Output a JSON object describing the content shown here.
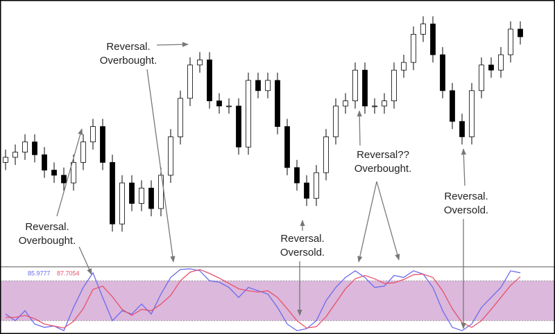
{
  "chart_data": [
    {
      "type": "candlestick",
      "open": [
        38,
        40,
        42,
        46,
        41,
        35,
        33,
        30,
        38,
        46,
        52,
        38,
        14,
        30,
        22,
        28,
        20,
        33,
        48,
        63,
        76,
        78,
        62,
        60,
        60,
        44,
        70,
        66,
        70,
        52,
        36,
        30,
        24,
        34,
        48,
        60,
        62,
        74,
        60,
        60,
        62,
        74,
        77,
        88,
        92,
        80,
        66,
        54,
        48,
        66,
        76,
        74,
        80,
        90
      ],
      "high": [
        43,
        45,
        49,
        49,
        44,
        38,
        36,
        41,
        49,
        55,
        55,
        41,
        33,
        33,
        31,
        31,
        36,
        51,
        66,
        79,
        81,
        81,
        65,
        63,
        63,
        73,
        73,
        73,
        73,
        55,
        39,
        33,
        37,
        51,
        63,
        65,
        77,
        77,
        63,
        65,
        77,
        80,
        91,
        95,
        95,
        83,
        69,
        57,
        69,
        79,
        79,
        83,
        93,
        93
      ],
      "low": [
        35,
        37,
        39,
        38,
        32,
        30,
        27,
        27,
        35,
        43,
        35,
        11,
        11,
        19,
        19,
        17,
        17,
        30,
        45,
        60,
        73,
        59,
        57,
        57,
        41,
        41,
        63,
        63,
        49,
        33,
        27,
        21,
        21,
        31,
        45,
        57,
        59,
        57,
        57,
        57,
        59,
        71,
        74,
        85,
        77,
        63,
        51,
        45,
        45,
        63,
        71,
        71,
        77,
        84
      ],
      "close": [
        40,
        42,
        46,
        41,
        35,
        33,
        30,
        38,
        46,
        52,
        38,
        14,
        30,
        22,
        28,
        20,
        33,
        48,
        63,
        76,
        78,
        62,
        60,
        60,
        44,
        70,
        66,
        70,
        52,
        36,
        30,
        24,
        34,
        48,
        60,
        62,
        74,
        60,
        60,
        62,
        74,
        77,
        88,
        92,
        80,
        66,
        54,
        48,
        66,
        76,
        74,
        80,
        90,
        87
      ],
      "up_color": "#ffffff",
      "down_color": "#000000",
      "ylim": [
        0,
        100
      ],
      "annotations": [
        {
          "lines": [
            "Reversal.",
            "Overbought."
          ]
        },
        {
          "lines": [
            "Reversal.",
            "Overbought."
          ]
        },
        {
          "lines": [
            "Reversal.",
            "Oversold."
          ]
        },
        {
          "lines": [
            "Reversal??",
            "Overbought."
          ]
        },
        {
          "lines": [
            "Reversal.",
            "Oversold."
          ]
        }
      ]
    },
    {
      "type": "line",
      "ylim": [
        0,
        100
      ],
      "levels": [
        20,
        80
      ],
      "band_color": "#dbb8dc",
      "series": [
        {
          "readout": "85.9777",
          "color": "#6a6aee",
          "values": [
            30,
            20,
            35,
            15,
            10,
            12,
            5,
            40,
            70,
            92,
            55,
            20,
            35,
            30,
            45,
            30,
            60,
            85,
            97,
            98,
            95,
            80,
            78,
            70,
            55,
            70,
            65,
            60,
            40,
            15,
            5,
            8,
            20,
            50,
            70,
            85,
            95,
            85,
            70,
            72,
            88,
            85,
            95,
            90,
            70,
            35,
            10,
            5,
            15,
            40,
            55,
            70,
            95,
            92
          ]
        },
        {
          "readout": "87.7054",
          "color": "#e8506a",
          "values": [
            25,
            25,
            28,
            23,
            15,
            12,
            9,
            19,
            38,
            67,
            72,
            56,
            37,
            28,
            37,
            35,
            45,
            58,
            80,
            93,
            97,
            91,
            84,
            76,
            68,
            65,
            63,
            65,
            55,
            38,
            20,
            9,
            11,
            26,
            47,
            68,
            83,
            88,
            83,
            76,
            77,
            82,
            89,
            90,
            85,
            65,
            38,
            17,
            10,
            20,
            37,
            55,
            73,
            86
          ]
        }
      ]
    }
  ]
}
